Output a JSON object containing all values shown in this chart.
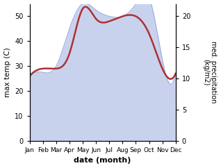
{
  "months": [
    "Jan",
    "Feb",
    "Mar",
    "Apr",
    "May",
    "Jun",
    "Jul",
    "Aug",
    "Sep",
    "Oct",
    "Nov",
    "Dec"
  ],
  "month_indices": [
    0,
    1,
    2,
    3,
    4,
    5,
    6,
    7,
    8,
    9,
    10,
    11
  ],
  "temp_max": [
    26,
    29,
    29,
    35,
    53,
    49,
    48,
    50,
    50,
    43,
    29,
    27
  ],
  "precipitation": [
    10,
    11,
    12,
    18,
    22,
    21,
    20,
    20,
    22,
    23,
    13,
    11
  ],
  "temp_ylim": [
    0,
    55
  ],
  "precip_ylim": [
    0,
    22
  ],
  "temp_yticks": [
    0,
    10,
    20,
    30,
    40,
    50
  ],
  "precip_yticks": [
    0,
    5,
    10,
    15,
    20
  ],
  "temp_color": "#aa3333",
  "precip_fill_color": "#b8c4e8",
  "precip_line_color": "#9aabde",
  "xlabel": "date (month)",
  "ylabel_left": "max temp (C)",
  "ylabel_right": "med. precipitation\n(kg/m2)",
  "fig_width": 3.18,
  "fig_height": 2.42,
  "dpi": 100
}
